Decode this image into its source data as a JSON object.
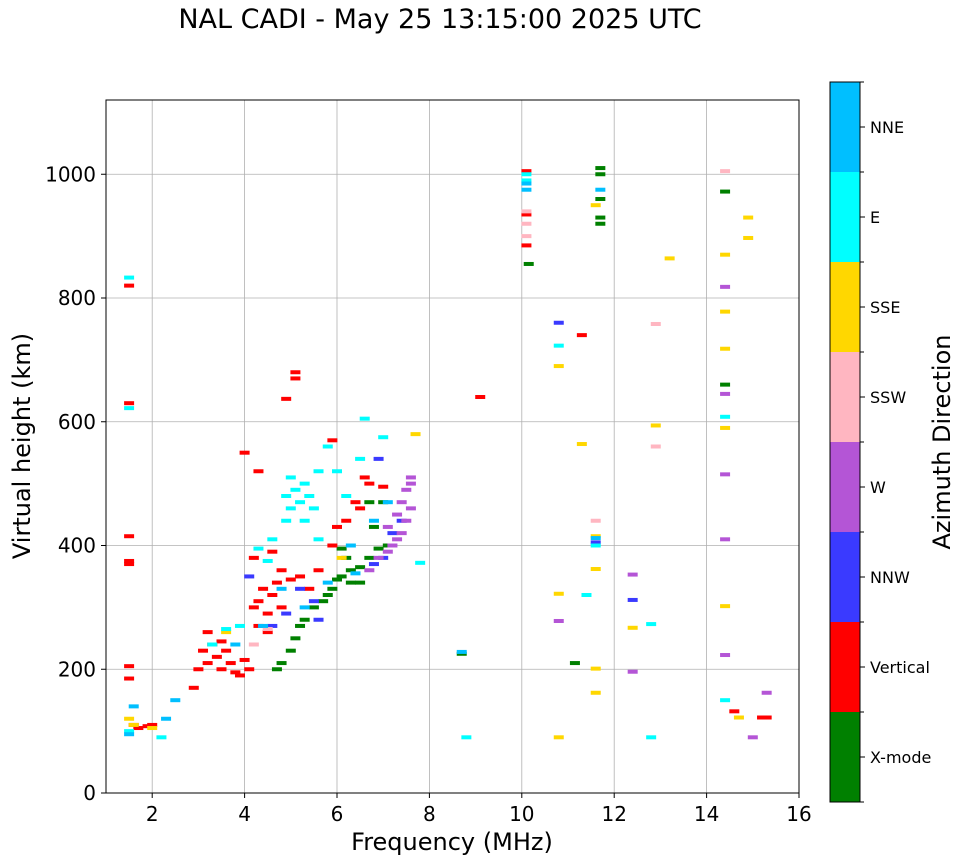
{
  "chart_data": {
    "type": "scatter",
    "title": "NAL CADI - May 25 13:15:00 2025 UTC",
    "xlabel": "Frequency (MHz)",
    "ylabel": "Virtual height (km)",
    "xlim": [
      1,
      16
    ],
    "ylim": [
      0,
      1120
    ],
    "xticks": [
      2,
      4,
      6,
      8,
      10,
      12,
      14,
      16
    ],
    "yticks": [
      0,
      200,
      400,
      600,
      800,
      1000
    ],
    "grid": true,
    "colorbar": {
      "label": "Azimuth Direction",
      "categories": [
        {
          "name": "X-mode",
          "color": "#008000"
        },
        {
          "name": "Vertical",
          "color": "#ff0000"
        },
        {
          "name": "NNW",
          "color": "#3a3aff"
        },
        {
          "name": "W",
          "color": "#b455d6"
        },
        {
          "name": "SSW",
          "color": "#ffb6c1"
        },
        {
          "name": "SSE",
          "color": "#ffd700"
        },
        {
          "name": "E",
          "color": "#00ffff"
        },
        {
          "name": "NNE",
          "color": "#00bfff"
        }
      ]
    },
    "series": [
      {
        "name": "X-mode",
        "points": [
          [
            4.7,
            200
          ],
          [
            4.8,
            210
          ],
          [
            5.0,
            230
          ],
          [
            5.1,
            250
          ],
          [
            5.3,
            280
          ],
          [
            5.5,
            300
          ],
          [
            5.7,
            310
          ],
          [
            5.9,
            330
          ],
          [
            6.1,
            350
          ],
          [
            6.3,
            360
          ],
          [
            6.5,
            365
          ],
          [
            6.7,
            380
          ],
          [
            6.9,
            395
          ],
          [
            7.1,
            400
          ],
          [
            6.3,
            340
          ],
          [
            6.0,
            345
          ],
          [
            6.5,
            340
          ],
          [
            6.8,
            430
          ],
          [
            7.0,
            470
          ],
          [
            6.2,
            380
          ],
          [
            5.8,
            320
          ],
          [
            10.15,
            855
          ],
          [
            11.7,
            1000
          ],
          [
            11.7,
            1010
          ],
          [
            11.7,
            960
          ],
          [
            11.7,
            930
          ],
          [
            11.7,
            920
          ],
          [
            11.15,
            210
          ],
          [
            14.4,
            660
          ],
          [
            14.4,
            972
          ],
          [
            8.7,
            225
          ],
          [
            6.7,
            470
          ],
          [
            6.1,
            395
          ],
          [
            5.2,
            270
          ]
        ]
      },
      {
        "name": "Vertical",
        "points": [
          [
            1.5,
            820
          ],
          [
            1.5,
            630
          ],
          [
            1.5,
            415
          ],
          [
            1.5,
            375
          ],
          [
            1.5,
            370
          ],
          [
            1.5,
            205
          ],
          [
            1.5,
            185
          ],
          [
            1.6,
            110
          ],
          [
            1.7,
            105
          ],
          [
            1.9,
            108
          ],
          [
            2.0,
            110
          ],
          [
            2.9,
            170
          ],
          [
            3.0,
            200
          ],
          [
            3.1,
            230
          ],
          [
            3.2,
            210
          ],
          [
            3.3,
            240
          ],
          [
            3.4,
            220
          ],
          [
            3.5,
            200
          ],
          [
            3.6,
            230
          ],
          [
            3.7,
            210
          ],
          [
            3.8,
            195
          ],
          [
            3.9,
            190
          ],
          [
            4.0,
            215
          ],
          [
            3.2,
            260
          ],
          [
            3.5,
            245
          ],
          [
            4.1,
            200
          ],
          [
            4.2,
            300
          ],
          [
            4.3,
            310
          ],
          [
            4.4,
            330
          ],
          [
            4.5,
            290
          ],
          [
            4.6,
            320
          ],
          [
            4.7,
            340
          ],
          [
            4.8,
            300
          ],
          [
            5.0,
            345
          ],
          [
            5.2,
            350
          ],
          [
            5.4,
            330
          ],
          [
            5.6,
            360
          ],
          [
            4.3,
            270
          ],
          [
            4.5,
            260
          ],
          [
            4.2,
            380
          ],
          [
            4.6,
            390
          ],
          [
            4.8,
            360
          ],
          [
            5.9,
            400
          ],
          [
            6.0,
            430
          ],
          [
            6.2,
            440
          ],
          [
            6.5,
            460
          ],
          [
            6.7,
            500
          ],
          [
            6.4,
            470
          ],
          [
            4.0,
            550
          ],
          [
            4.3,
            520
          ],
          [
            5.1,
            680
          ],
          [
            5.1,
            670
          ],
          [
            4.9,
            637
          ],
          [
            5.9,
            570
          ],
          [
            6.6,
            510
          ],
          [
            9.1,
            640
          ],
          [
            11.3,
            740
          ],
          [
            14.6,
            132
          ],
          [
            15.2,
            122
          ],
          [
            15.3,
            122
          ],
          [
            10.1,
            1005
          ],
          [
            10.1,
            935
          ],
          [
            10.1,
            885
          ],
          [
            7.0,
            495
          ]
        ]
      },
      {
        "name": "NNW",
        "points": [
          [
            4.6,
            270
          ],
          [
            4.9,
            290
          ],
          [
            5.2,
            330
          ],
          [
            5.5,
            310
          ],
          [
            6.8,
            370
          ],
          [
            7.0,
            380
          ],
          [
            7.2,
            420
          ],
          [
            7.4,
            440
          ],
          [
            10.8,
            760
          ],
          [
            11.6,
            405
          ],
          [
            12.4,
            312
          ],
          [
            6.9,
            540
          ],
          [
            4.1,
            350
          ],
          [
            5.6,
            280
          ]
        ]
      },
      {
        "name": "W",
        "points": [
          [
            6.7,
            360
          ],
          [
            6.9,
            380
          ],
          [
            7.1,
            390
          ],
          [
            7.2,
            400
          ],
          [
            7.3,
            410
          ],
          [
            7.4,
            420
          ],
          [
            7.5,
            440
          ],
          [
            7.6,
            460
          ],
          [
            7.4,
            470
          ],
          [
            7.5,
            490
          ],
          [
            7.6,
            500
          ],
          [
            7.6,
            510
          ],
          [
            7.3,
            450
          ],
          [
            7.1,
            430
          ],
          [
            10.8,
            278
          ],
          [
            12.4,
            353
          ],
          [
            12.4,
            196
          ],
          [
            14.4,
            818
          ],
          [
            14.4,
            645
          ],
          [
            14.4,
            515
          ],
          [
            14.4,
            410
          ],
          [
            14.4,
            223
          ],
          [
            15.0,
            90
          ],
          [
            15.3,
            162
          ]
        ]
      },
      {
        "name": "SSW",
        "points": [
          [
            4.5,
            265
          ],
          [
            4.2,
            240
          ],
          [
            10.1,
            900
          ],
          [
            10.1,
            920
          ],
          [
            10.1,
            940
          ],
          [
            11.6,
            440
          ],
          [
            12.9,
            758
          ],
          [
            12.9,
            560
          ],
          [
            14.4,
            1005
          ]
        ]
      },
      {
        "name": "SSE",
        "points": [
          [
            1.6,
            110
          ],
          [
            1.5,
            120
          ],
          [
            2.0,
            105
          ],
          [
            3.6,
            260
          ],
          [
            6.1,
            380
          ],
          [
            7.7,
            580
          ],
          [
            10.8,
            690
          ],
          [
            10.8,
            322
          ],
          [
            10.8,
            90
          ],
          [
            11.3,
            564
          ],
          [
            11.6,
            950
          ],
          [
            11.6,
            415
          ],
          [
            11.6,
            362
          ],
          [
            11.6,
            201
          ],
          [
            11.6,
            162
          ],
          [
            12.4,
            267
          ],
          [
            12.9,
            594
          ],
          [
            13.2,
            864
          ],
          [
            14.4,
            870
          ],
          [
            14.4,
            778
          ],
          [
            14.4,
            718
          ],
          [
            14.4,
            590
          ],
          [
            14.4,
            302
          ],
          [
            14.7,
            122
          ],
          [
            14.9,
            930
          ],
          [
            14.9,
            897
          ]
        ]
      },
      {
        "name": "E",
        "points": [
          [
            1.5,
            833
          ],
          [
            1.5,
            622
          ],
          [
            1.5,
            100
          ],
          [
            2.2,
            90
          ],
          [
            3.3,
            240
          ],
          [
            3.6,
            265
          ],
          [
            3.9,
            270
          ],
          [
            4.3,
            395
          ],
          [
            4.6,
            410
          ],
          [
            4.9,
            440
          ],
          [
            5.0,
            460
          ],
          [
            5.1,
            490
          ],
          [
            5.2,
            470
          ],
          [
            5.3,
            500
          ],
          [
            5.4,
            480
          ],
          [
            5.6,
            520
          ],
          [
            5.5,
            460
          ],
          [
            4.9,
            480
          ],
          [
            5.0,
            510
          ],
          [
            5.3,
            440
          ],
          [
            5.8,
            560
          ],
          [
            6.0,
            520
          ],
          [
            6.2,
            480
          ],
          [
            6.5,
            540
          ],
          [
            6.6,
            605
          ],
          [
            7.0,
            575
          ],
          [
            7.8,
            372
          ],
          [
            4.5,
            375
          ],
          [
            5.6,
            410
          ],
          [
            8.8,
            90
          ],
          [
            10.8,
            723
          ],
          [
            11.4,
            320
          ],
          [
            11.6,
            400
          ],
          [
            12.8,
            273
          ],
          [
            12.8,
            90
          ],
          [
            14.4,
            608
          ],
          [
            14.4,
            150
          ],
          [
            10.1,
            1000
          ],
          [
            10.1,
            990
          ]
        ]
      },
      {
        "name": "NNE",
        "points": [
          [
            1.5,
            95
          ],
          [
            1.6,
            140
          ],
          [
            2.3,
            120
          ],
          [
            2.5,
            150
          ],
          [
            3.8,
            240
          ],
          [
            4.4,
            270
          ],
          [
            4.8,
            330
          ],
          [
            5.3,
            300
          ],
          [
            5.8,
            340
          ],
          [
            6.3,
            400
          ],
          [
            6.8,
            440
          ],
          [
            7.1,
            470
          ],
          [
            6.4,
            355
          ],
          [
            10.1,
            985
          ],
          [
            10.1,
            975
          ],
          [
            11.6,
            412
          ],
          [
            11.7,
            975
          ],
          [
            8.7,
            228
          ]
        ]
      }
    ]
  }
}
